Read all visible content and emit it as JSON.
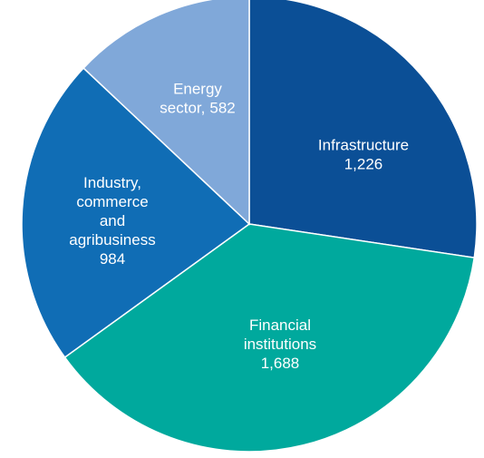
{
  "chart_data": {
    "type": "pie",
    "categories": [
      "Infrastructure",
      "Financial institutions",
      "Industry, commerce and agribusiness",
      "Energy sector,"
    ],
    "values": [
      1226,
      1688,
      984,
      582
    ],
    "value_labels": [
      "1,226",
      "1,688",
      "984",
      "582"
    ],
    "colors": [
      "#0b4f96",
      "#00a99d",
      "#106db5",
      "#80a8d9"
    ]
  }
}
